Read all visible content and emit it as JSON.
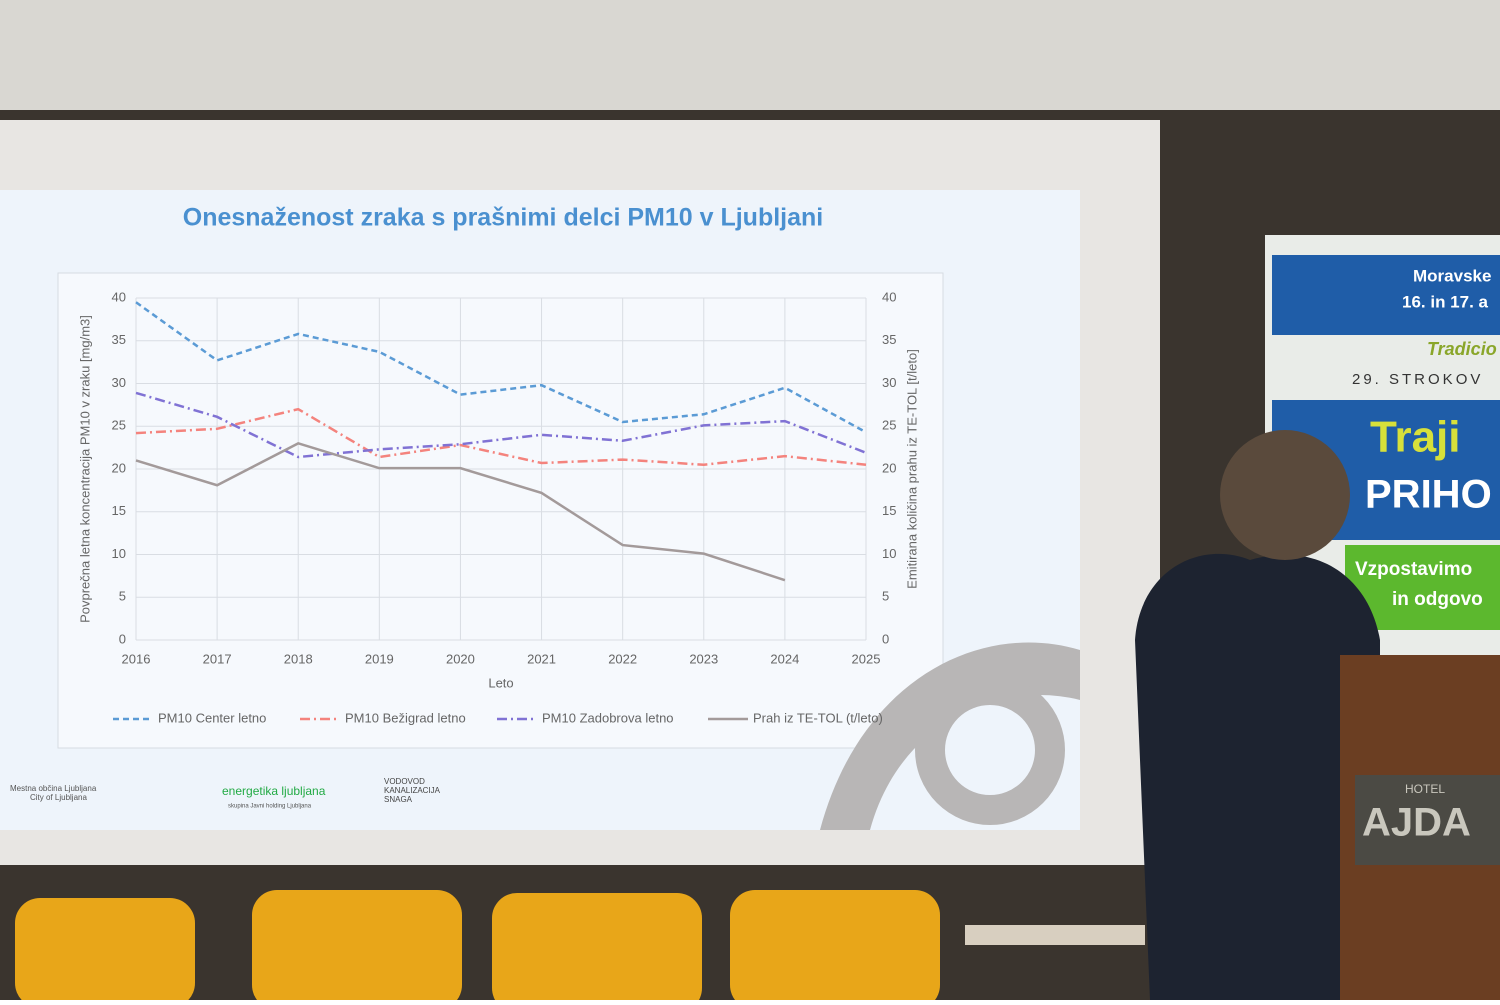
{
  "chart_data": {
    "type": "line",
    "title": "Onesnaženost zraka s prašnimi delci PM10 v Ljubljani",
    "x_label": "Leto",
    "y_label": "Povprečna letna koncentracija PM10 v zraku [mg/m3]",
    "y2_label": "Emitirana količina prahu iz TE-TOL [t/leto]",
    "x": [
      2016,
      2017,
      2018,
      2019,
      2020,
      2021,
      2022,
      2023,
      2024,
      2025
    ],
    "xlim": [
      2016,
      2025
    ],
    "xticks": [
      2016,
      2017,
      2018,
      2019,
      2020,
      2021,
      2022,
      2023,
      2024,
      2025
    ],
    "ylim": [
      0,
      40
    ],
    "yticks": [
      0,
      5,
      10,
      15,
      20,
      25,
      30,
      35,
      40
    ],
    "y2lim": [
      0,
      40
    ],
    "y2ticks": [
      0,
      5,
      10,
      15,
      20,
      25,
      30,
      35,
      40
    ],
    "grid": true,
    "legend": "bottom",
    "series": [
      {
        "name": "PM10 Center letno",
        "color": "#5b9bd5",
        "line_style": "dashed",
        "values": [
          39.5,
          32.7,
          35.8,
          33.7,
          28.7,
          29.8,
          25.5,
          26.4,
          29.5,
          24.3
        ]
      },
      {
        "name": "PM10 Bežigrad letno",
        "color": "#f4837d",
        "line_style": "dashdot",
        "values": [
          24.2,
          24.7,
          27,
          21.4,
          22.8,
          20.7,
          21.1,
          20.5,
          21.5,
          20.5
        ]
      },
      {
        "name": "PM10 Zadobrova letno",
        "color": "#8072d4",
        "line_style": "dashdot",
        "values": [
          28.9,
          26.1,
          21.4,
          22.3,
          22.9,
          24,
          23.3,
          25.1,
          25.6,
          21.9
        ]
      },
      {
        "name": "Prah iz TE-TOL (t/leto)",
        "color": "#a39a9a",
        "line_style": "solid",
        "axis": "y2",
        "values": [
          21,
          18.1,
          23,
          20.1,
          20.1,
          17.2,
          11.1,
          10.1,
          7,
          null
        ]
      }
    ]
  },
  "logos": [
    "Mestna občina Ljubljana",
    "City of Ljubljana",
    "energetika ljubljana",
    "skupina Javni holding Ljubljana",
    "VODOVOD",
    "KANALIZACIJA",
    "SNAGA"
  ],
  "banner": [
    "Moravske",
    "16. in 17. a",
    "Tradicio",
    "29. STROKOV",
    "Traji",
    "PRIHO",
    "Vzpostavimo",
    "in odgovo"
  ],
  "podium": [
    "HOTEL",
    "AJDA"
  ]
}
